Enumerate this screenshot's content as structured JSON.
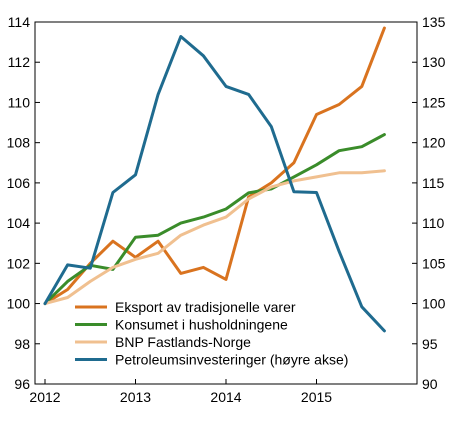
{
  "chart_data": {
    "type": "line",
    "x_ticks": [
      "2012",
      "2013",
      "2014",
      "2015"
    ],
    "quarters": [
      "2012Q1",
      "2012Q2",
      "2012Q3",
      "2012Q4",
      "2013Q1",
      "2013Q2",
      "2013Q3",
      "2013Q4",
      "2014Q1",
      "2014Q2",
      "2014Q3",
      "2014Q4",
      "2015Q1",
      "2015Q2",
      "2015Q3",
      "2015Q4"
    ],
    "left_axis": {
      "ylim": [
        96,
        114
      ],
      "ticks": [
        96,
        98,
        100,
        102,
        104,
        106,
        108,
        110,
        112,
        114
      ]
    },
    "right_axis": {
      "ylim": [
        90,
        135
      ],
      "ticks": [
        90,
        95,
        100,
        105,
        110,
        115,
        120,
        125,
        130,
        135
      ]
    },
    "grid": false,
    "legend_position": "bottom-center",
    "series": [
      {
        "name": "Eksport av tradisjonelle varer",
        "axis": "left",
        "color": "#d9731f",
        "values": [
          100.0,
          100.7,
          102.0,
          103.1,
          102.3,
          103.1,
          101.5,
          101.8,
          101.2,
          105.3,
          106.0,
          107.0,
          109.4,
          109.9,
          110.8,
          113.7
        ]
      },
      {
        "name": "Konsumet i husholdningene",
        "axis": "left",
        "color": "#3a8c2a",
        "values": [
          100.0,
          101.1,
          101.9,
          101.7,
          103.3,
          103.4,
          104.0,
          104.3,
          104.7,
          105.5,
          105.7,
          106.3,
          106.9,
          107.6,
          107.8,
          108.4
        ]
      },
      {
        "name": "BNP Fastlands-Norge",
        "axis": "left",
        "color": "#f0c090",
        "values": [
          100.0,
          100.3,
          101.1,
          101.8,
          102.2,
          102.5,
          103.4,
          103.9,
          104.3,
          105.2,
          105.8,
          106.1,
          106.3,
          106.5,
          106.5,
          106.6
        ]
      },
      {
        "name": "Petroleumsinvesteringer (høyre akse)",
        "axis": "right",
        "color": "#1f6b8f",
        "values": [
          100.0,
          104.8,
          104.4,
          113.8,
          116.0,
          126.0,
          133.2,
          130.8,
          127.0,
          126.0,
          122.0,
          113.9,
          113.8,
          106.5,
          99.6,
          96.6
        ]
      }
    ]
  }
}
